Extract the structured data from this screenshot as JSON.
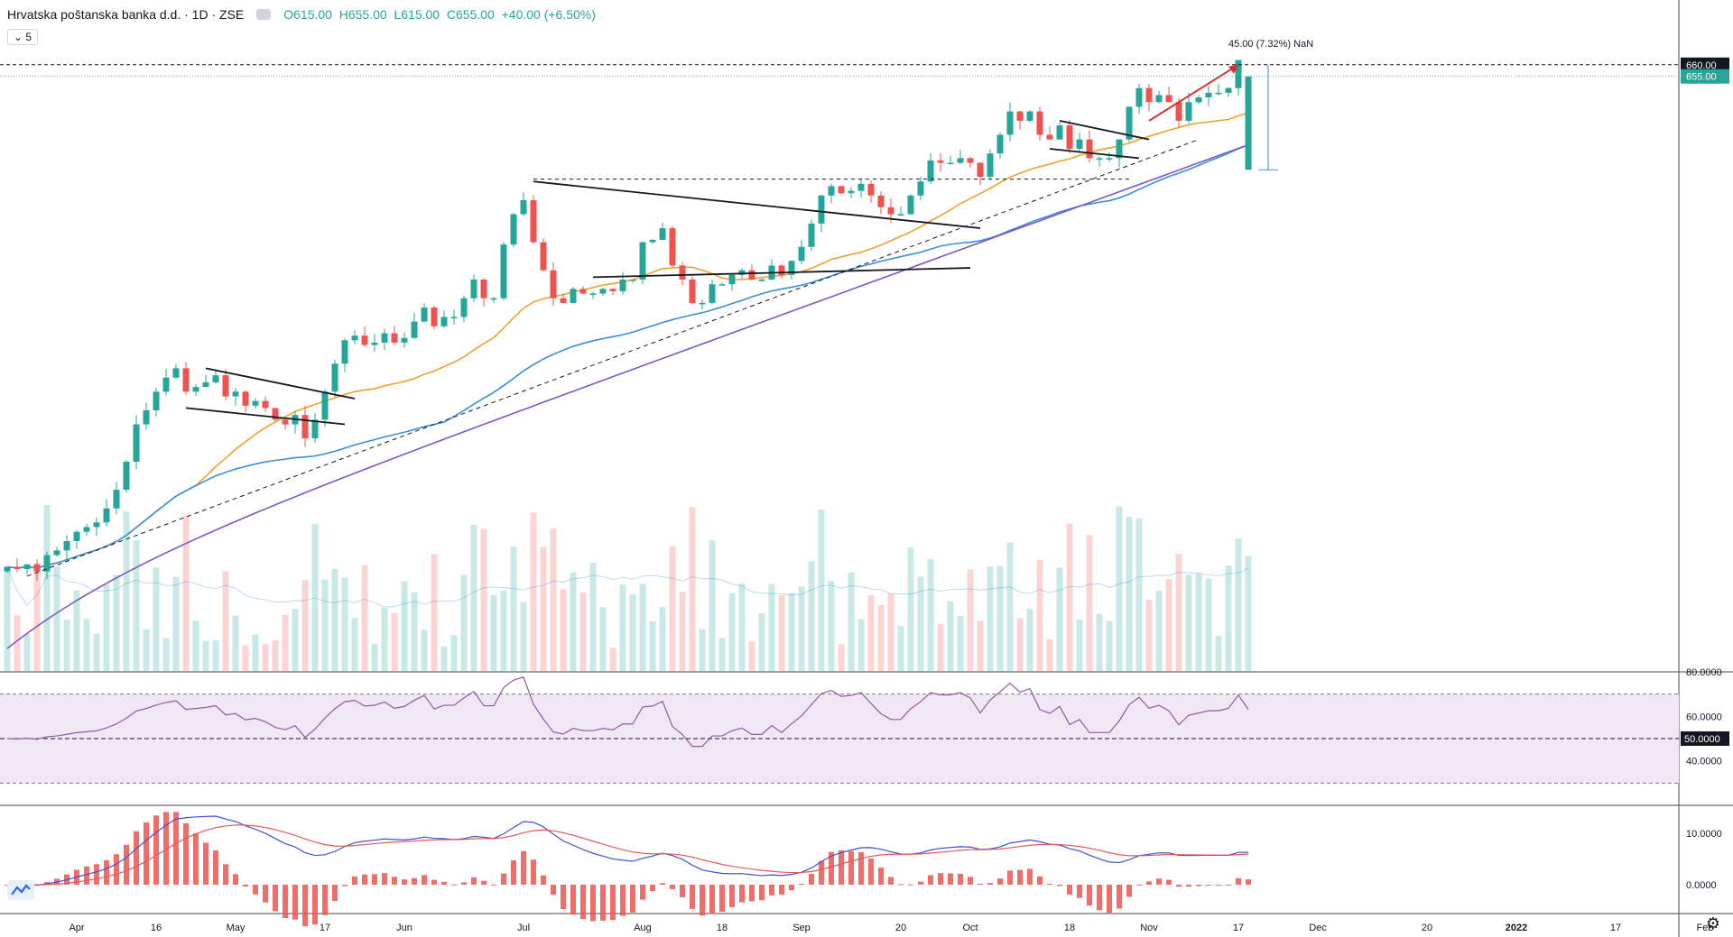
{
  "header": {
    "title": "Hrvatska poštanska banka d.d. · 1D · ZSE",
    "open_label": "O",
    "open": "615.00",
    "high_label": "H",
    "high": "655.00",
    "low_label": "L",
    "low": "615.00",
    "close_label": "C",
    "close": "655.00",
    "change": "+40.00 (+6.50%)",
    "interval_button": "5"
  },
  "colors": {
    "up": "#26a69a",
    "down": "#ef5350",
    "ma20": "#f0a030",
    "ma50": "#3a8fd9",
    "ma200": "#7e57c2",
    "rsi_band": "#f2e7f4",
    "rsi_line": "#8e5aa6",
    "macd_line": "#3f51d4",
    "signal_line": "#e05a5a",
    "hist": "#ef5350",
    "arrow": "#d32f2f",
    "measure": "#5b9bd5"
  },
  "chart_data": [
    {
      "type": "candlestick",
      "title": "Hrvatska poštanska banka d.d. · 1D · ZSE",
      "ylim": [
        400,
        680
      ],
      "price_labels": [
        "660.00",
        "655.00"
      ],
      "annotation": "45.00 (7.32%) NaN",
      "x_tick_labels": [
        "Apr",
        "16",
        "May",
        "17",
        "Jun",
        "Jul",
        "Aug",
        "18",
        "Sep",
        "20",
        "Oct",
        "18",
        "Nov",
        "17",
        "Dec",
        "20",
        "2022",
        "17",
        "Feb"
      ],
      "close": [
        445,
        444,
        446,
        443,
        450,
        452,
        456,
        460,
        462,
        464,
        470,
        478,
        490,
        506,
        512,
        520,
        526,
        530,
        520,
        522,
        524,
        527,
        518,
        520,
        514,
        516,
        513,
        508,
        506,
        510,
        500,
        508,
        520,
        532,
        542,
        544,
        540,
        541,
        545,
        541,
        543,
        550,
        556,
        548,
        552,
        552,
        560,
        568,
        560,
        560,
        583,
        596,
        602,
        584,
        572,
        560,
        558,
        564,
        562,
        562,
        564,
        563,
        568,
        568,
        584,
        585,
        590,
        574,
        568,
        558,
        558,
        566,
        566,
        570,
        572,
        568,
        568,
        574,
        570,
        576,
        582,
        592,
        604,
        608,
        605,
        606,
        609,
        604,
        599,
        596,
        596,
        604,
        610,
        619,
        618,
        618,
        620,
        618,
        612,
        622,
        630,
        640,
        636,
        640,
        630,
        628,
        634,
        624,
        628,
        620,
        620,
        620,
        628,
        642,
        650,
        644,
        647,
        644,
        636,
        644,
        646,
        648,
        648,
        650,
        662,
        655
      ],
      "volume_note": "volume histogram with moving average",
      "series_overlays": [
        "SMA 20",
        "SMA 50",
        "SMA 200"
      ]
    },
    {
      "type": "line",
      "title": "",
      "ylim": [
        20,
        80
      ],
      "y_tick_labels": [
        "80.0000",
        "60.0000",
        "50.0000",
        "40.0000"
      ],
      "current_value_label": "50.0000"
    },
    {
      "type": "line",
      "title": "",
      "y_tick_labels": [
        "10.0000",
        "0.0000"
      ]
    }
  ]
}
